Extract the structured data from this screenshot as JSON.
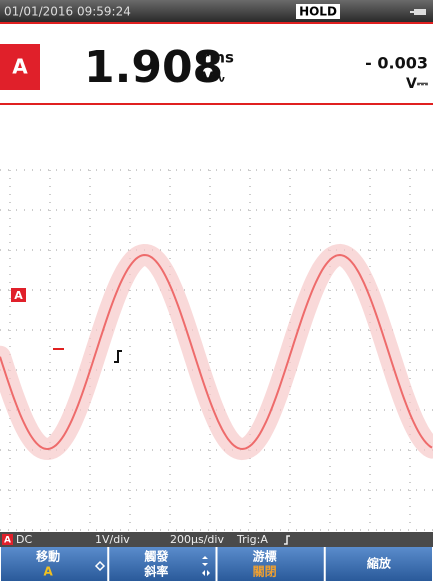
{
  "header": {
    "timestamp": "01/01/2016 09:59:24",
    "hold": "HOLD"
  },
  "reading": {
    "channel": "A",
    "value": "1.908",
    "unit_top": "rms",
    "unit_bottom": "V∿",
    "secondary_value": "- 0.003",
    "secondary_unit": "V⎓"
  },
  "trace": {
    "label": "A"
  },
  "status": {
    "channel": "A",
    "coupling": "DC",
    "vdiv": "1V/div",
    "tdiv": "200µs/div",
    "trigger": "Trig:A"
  },
  "softkeys": [
    {
      "line1": "移動",
      "line2": "A"
    },
    {
      "line1": "觸發",
      "line2": "斜率"
    },
    {
      "line1": "游標",
      "line2": "關閉"
    },
    {
      "line1": "縮放"
    }
  ]
}
